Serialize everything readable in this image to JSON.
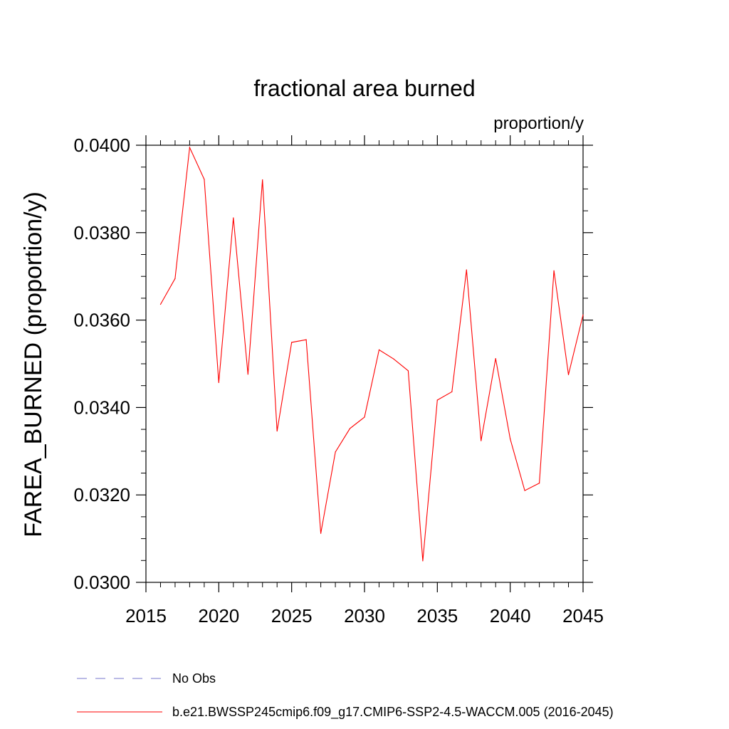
{
  "chart_data": {
    "type": "line",
    "title": "fractional area burned",
    "units_label": "proportion/y",
    "xlabel": "",
    "ylabel": "FAREA_BURNED  (proportion/y)",
    "xlim": [
      2015,
      2045
    ],
    "ylim": [
      0.03,
      0.04
    ],
    "x_ticks": [
      2015,
      2020,
      2025,
      2030,
      2035,
      2040,
      2045
    ],
    "x_tick_labels": [
      "2015",
      "2020",
      "2025",
      "2030",
      "2035",
      "2040",
      "2045"
    ],
    "y_ticks": [
      0.03,
      0.032,
      0.034,
      0.036,
      0.038,
      0.04
    ],
    "y_tick_labels": [
      "0.0300",
      "0.0320",
      "0.0340",
      "0.0360",
      "0.0380",
      "0.0400"
    ],
    "x_minor_step": 1,
    "y_minor_step": 0.0005,
    "grid": false,
    "legend_position": "bottom",
    "series": [
      {
        "name": "b.e21.BWSSP245cmip6.f09_g17.CMIP6-SSP2-4.5-WACCM.005 (2016-2045)",
        "color": "#ff0000",
        "style": "solid",
        "x": [
          2016,
          2017,
          2018,
          2019,
          2020,
          2021,
          2022,
          2023,
          2024,
          2025,
          2026,
          2027,
          2028,
          2029,
          2030,
          2031,
          2032,
          2033,
          2034,
          2035,
          2036,
          2037,
          2038,
          2039,
          2040,
          2041,
          2042,
          2043,
          2044,
          2045
        ],
        "values": [
          0.03636,
          0.03695,
          0.03995,
          0.03922,
          0.03457,
          0.03834,
          0.03476,
          0.03921,
          0.03346,
          0.03549,
          0.03555,
          0.03112,
          0.03298,
          0.03352,
          0.03378,
          0.03532,
          0.03511,
          0.03484,
          0.03049,
          0.03417,
          0.03436,
          0.03715,
          0.03324,
          0.03512,
          0.03328,
          0.0321,
          0.03227,
          0.03713,
          0.03475,
          0.03612
        ]
      },
      {
        "name": "No Obs",
        "color": "#7777cc",
        "style": "dashed",
        "x": [],
        "values": []
      }
    ]
  }
}
